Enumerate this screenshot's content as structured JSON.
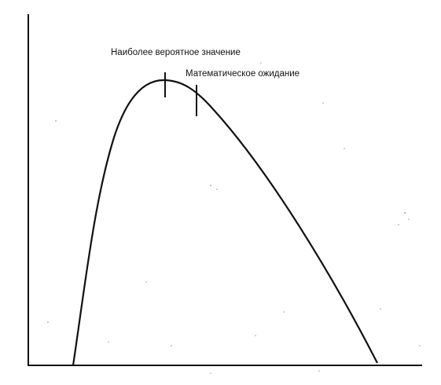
{
  "annotations": {
    "mode_label": "Наиболее вероятное значение",
    "mean_label": "Математическое ожидание"
  },
  "colors": {
    "ink": "#111111",
    "background": "#ffffff"
  }
}
